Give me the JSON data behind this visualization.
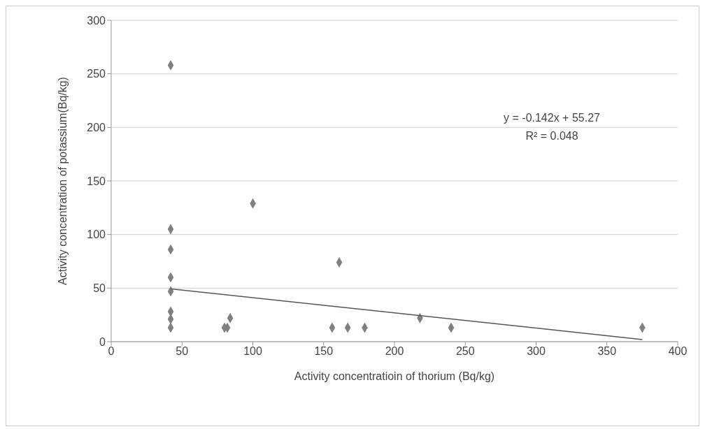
{
  "chart_data": {
    "type": "scatter",
    "xlabel": "Activity concentratioin of thorium (Bq/kg)",
    "ylabel": "Activity concentration of potassium(Bq/kg)",
    "series": [
      {
        "color": "#808080",
        "marker": "diamond",
        "x": [
          42,
          42,
          42,
          42,
          42,
          42,
          42,
          42,
          80,
          82,
          84,
          100,
          156,
          161,
          167,
          179,
          218,
          240,
          375
        ],
        "values": [
          258,
          105,
          86,
          60,
          47,
          28,
          21,
          13,
          13,
          13,
          22,
          129,
          13,
          74,
          13,
          13,
          22,
          13,
          13
        ]
      },
      {
        "type": "line",
        "color": "#555555",
        "marker": "none",
        "x": [
          42,
          375
        ],
        "values": [
          49.3,
          2.0
        ]
      }
    ],
    "annotations": [
      "y = -0.142x + 55.27",
      "R² = 0.048"
    ],
    "xlim": [
      0,
      400
    ],
    "xticks": [
      0,
      50,
      100,
      150,
      200,
      250,
      300,
      350,
      400
    ],
    "ylim": [
      0,
      300
    ],
    "yticks": [
      0,
      50,
      100,
      150,
      200,
      250,
      300
    ],
    "grid": "y"
  }
}
